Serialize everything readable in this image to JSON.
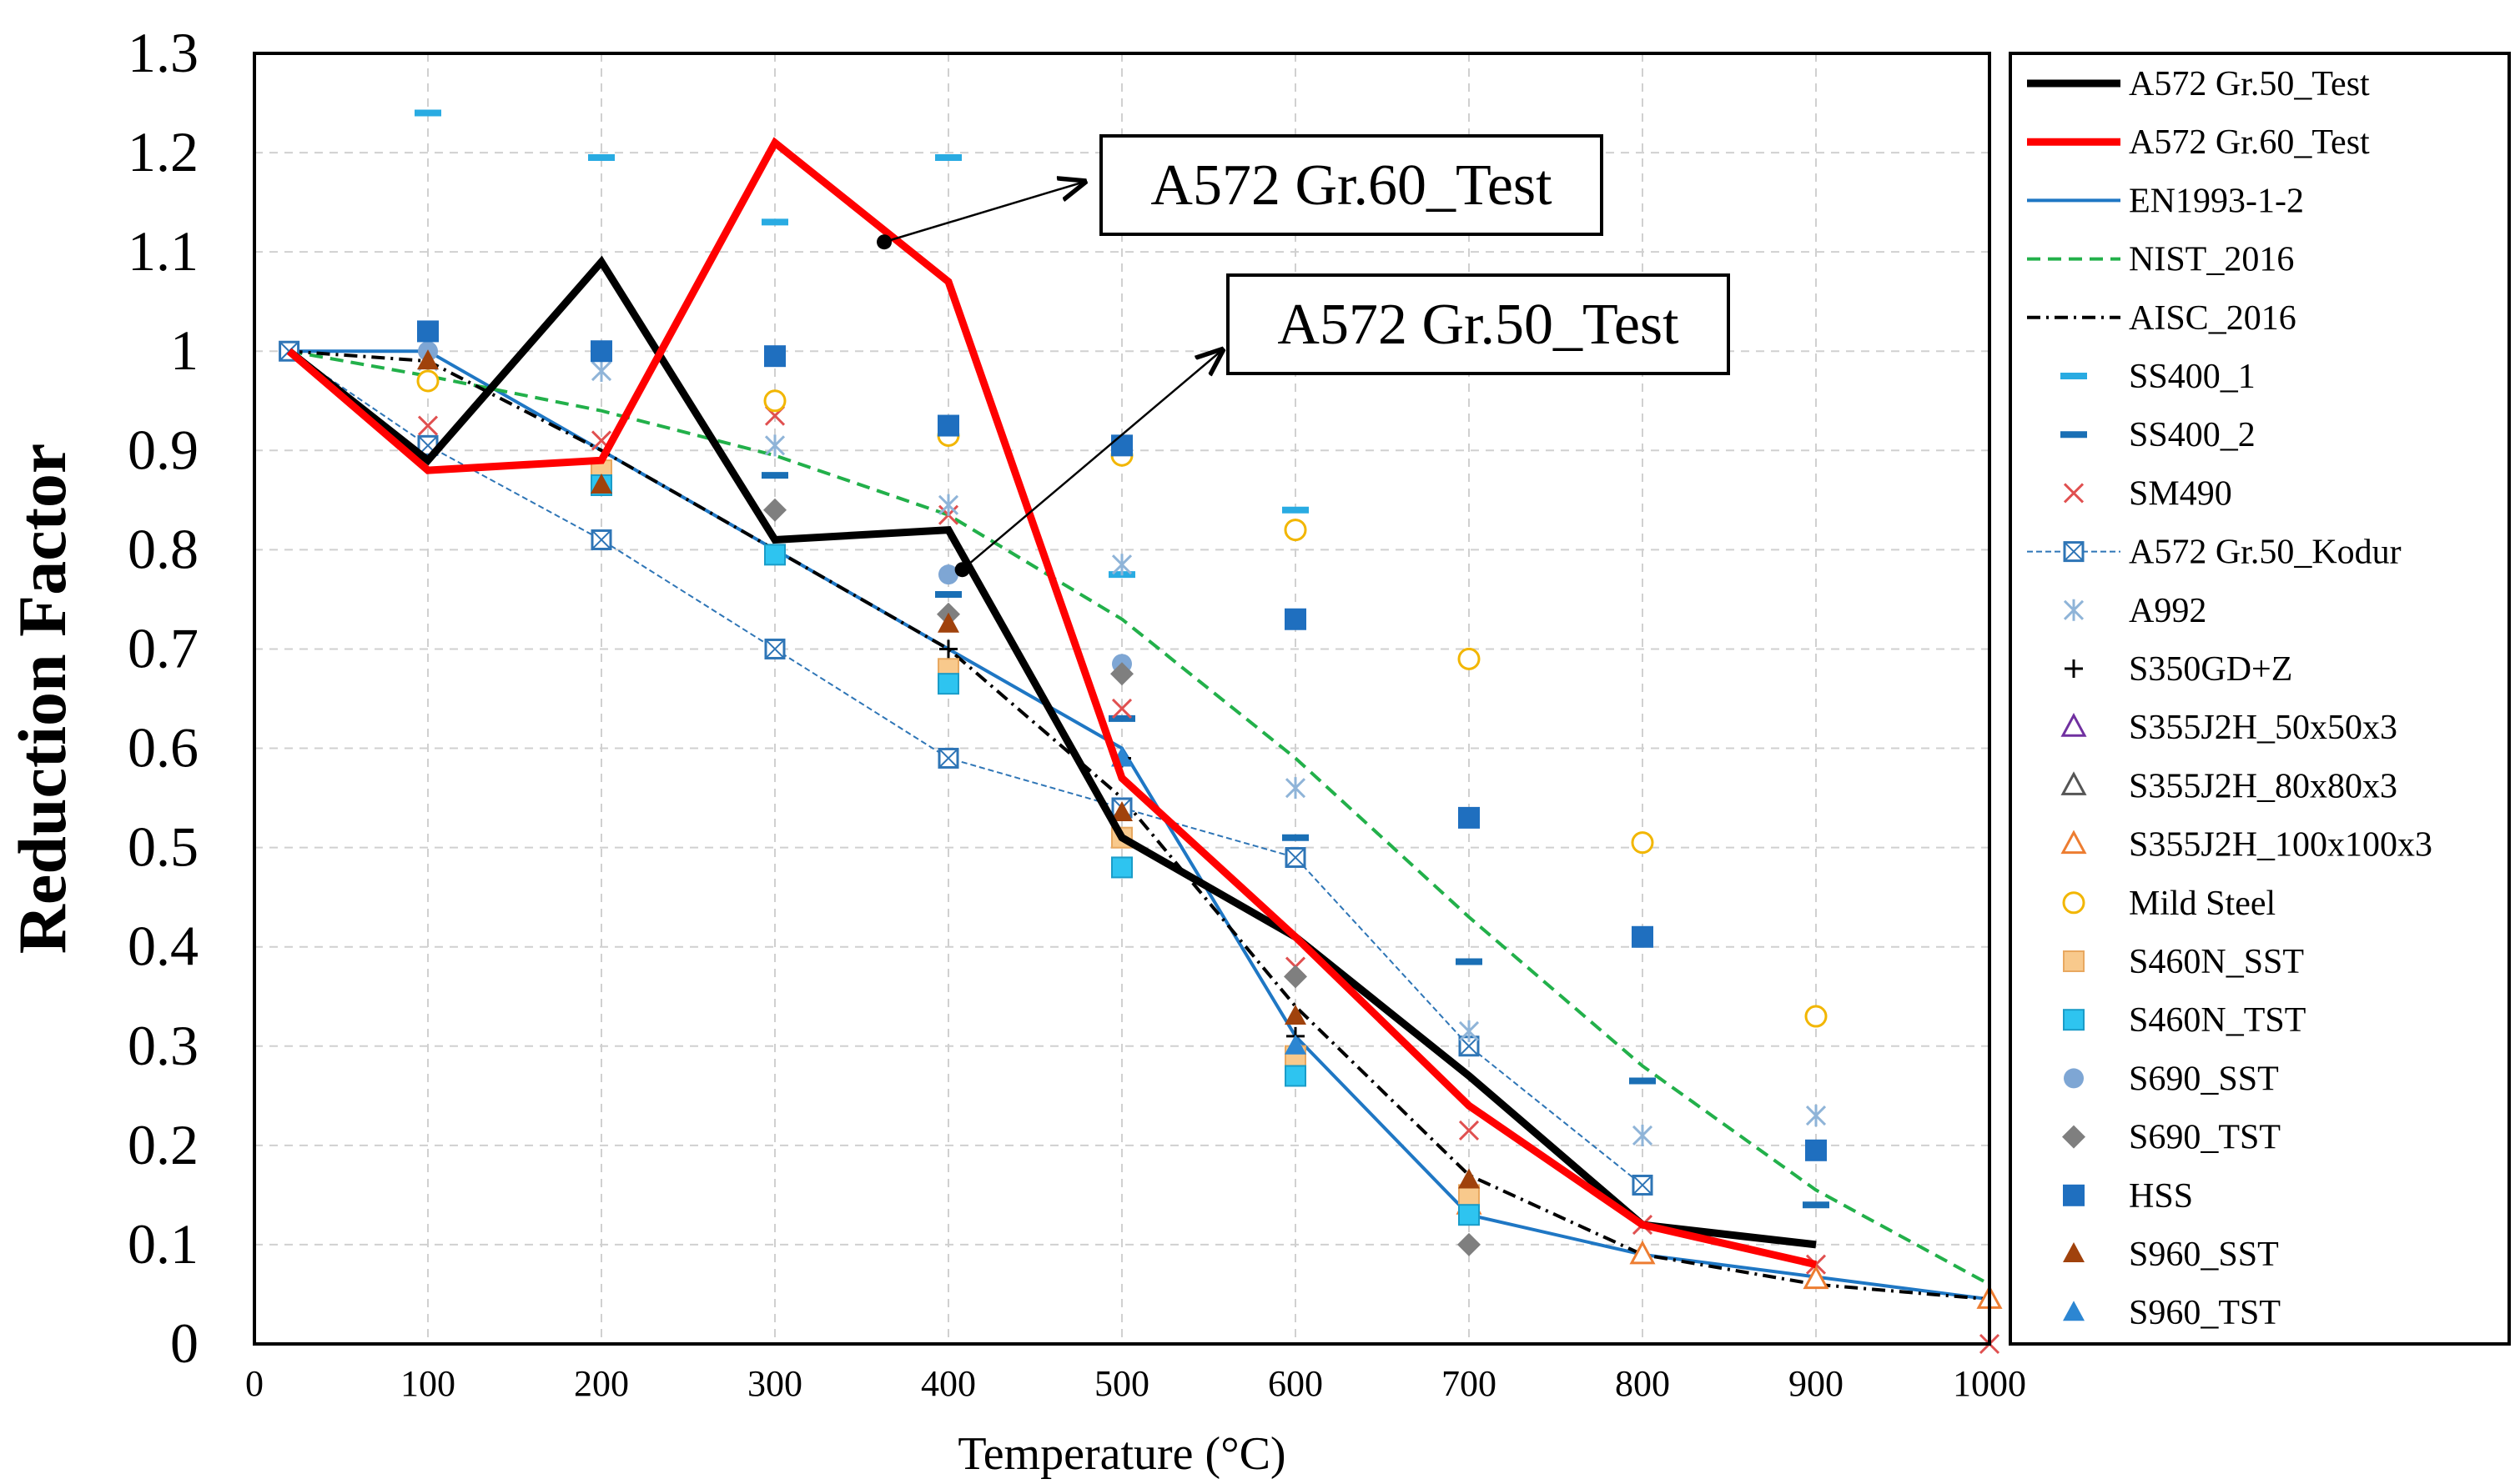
{
  "chart_data": {
    "type": "line",
    "xlabel": "Temperature (°C)",
    "ylabel": "Reduction Factor",
    "xlim": [
      0,
      1000
    ],
    "ylim": [
      0,
      1.3
    ],
    "x_ticks": [
      "0",
      "100",
      "200",
      "300",
      "400",
      "500",
      "600",
      "700",
      "800",
      "900",
      "1000"
    ],
    "y_ticks": [
      "0",
      "0.1",
      "0.2",
      "0.3",
      "0.4",
      "0.5",
      "0.6",
      "0.7",
      "0.8",
      "0.9",
      "1",
      "1.1",
      "1.2",
      "1.3"
    ],
    "grid": true,
    "legend_position": "right",
    "annotations": [
      {
        "text": "A572 Gr.60_Test",
        "point": [
          363,
          1.11
        ]
      },
      {
        "text": "A572 Gr.50_Test",
        "point": [
          408,
          0.78
        ]
      }
    ],
    "series": [
      {
        "name": "A572 Gr.50_Test",
        "style": "line",
        "color": "#000000",
        "dash": "",
        "width": 9,
        "x": [
          20,
          100,
          200,
          300,
          400,
          500,
          600,
          700,
          800,
          900
        ],
        "y": [
          1.0,
          0.89,
          1.09,
          0.81,
          0.82,
          0.51,
          0.41,
          0.27,
          0.12,
          0.1
        ]
      },
      {
        "name": "A572 Gr.60_Test",
        "style": "line",
        "color": "#ff0000",
        "dash": "",
        "width": 9,
        "x": [
          20,
          100,
          200,
          300,
          400,
          500,
          600,
          700,
          800,
          900
        ],
        "y": [
          1.0,
          0.88,
          0.89,
          1.21,
          1.07,
          0.57,
          0.41,
          0.24,
          0.12,
          0.08
        ]
      },
      {
        "name": "EN1993-1-2",
        "style": "line",
        "color": "#1f77c4",
        "dash": "",
        "width": 4,
        "x": [
          20,
          100,
          200,
          300,
          400,
          500,
          600,
          700,
          800,
          900,
          1000
        ],
        "y": [
          1.0,
          1.0,
          0.9,
          0.8,
          0.7,
          0.6,
          0.31,
          0.13,
          0.09,
          0.0675,
          0.045
        ]
      },
      {
        "name": "NIST_2016",
        "style": "line",
        "color": "#22b04a",
        "dash": "16 9",
        "width": 4,
        "x": [
          20,
          100,
          200,
          300,
          400,
          500,
          600,
          700,
          800,
          900,
          1000
        ],
        "y": [
          1.0,
          0.975,
          0.94,
          0.895,
          0.835,
          0.73,
          0.59,
          0.43,
          0.28,
          0.155,
          0.06
        ]
      },
      {
        "name": "AISC_2016",
        "style": "line",
        "color": "#000000",
        "dash": "16 7 3 7",
        "width": 4,
        "x": [
          20,
          100,
          200,
          300,
          400,
          500,
          600,
          700,
          800,
          900,
          1000
        ],
        "y": [
          1.0,
          0.99,
          0.9,
          0.8,
          0.7,
          0.55,
          0.34,
          0.17,
          0.09,
          0.06,
          0.045
        ]
      },
      {
        "name": "SS400_1",
        "style": "marker",
        "marker": "dash",
        "color": "#29abe2",
        "x": [
          100,
          200,
          300,
          400,
          500,
          600
        ],
        "y": [
          1.24,
          1.195,
          1.13,
          1.195,
          0.775,
          0.84
        ]
      },
      {
        "name": "SS400_2",
        "style": "marker",
        "marker": "dash",
        "color": "#1a6fb5",
        "x": [
          300,
          400,
          500,
          600,
          700,
          800,
          900
        ],
        "y": [
          0.875,
          0.755,
          0.63,
          0.51,
          0.385,
          0.265,
          0.14
        ]
      },
      {
        "name": "SM490",
        "style": "marker",
        "marker": "x",
        "color": "#e05050",
        "x": [
          100,
          200,
          300,
          400,
          500,
          600,
          700,
          800,
          900,
          1000
        ],
        "y": [
          0.925,
          0.91,
          0.935,
          0.835,
          0.64,
          0.38,
          0.215,
          0.12,
          0.08,
          0.0
        ]
      },
      {
        "name": "A572 Gr.50_Kodur",
        "style": "line",
        "marker": "boxx",
        "color": "#2e75b6",
        "dash": "7 4",
        "width": 2,
        "x": [
          20,
          100,
          200,
          300,
          400,
          500,
          600,
          700,
          800
        ],
        "y": [
          1.0,
          0.905,
          0.81,
          0.7,
          0.59,
          0.54,
          0.49,
          0.3,
          0.16
        ]
      },
      {
        "name": "A992",
        "style": "marker",
        "marker": "star",
        "color": "#8fb4d8",
        "x": [
          100,
          200,
          300,
          400,
          500,
          600,
          700,
          800,
          900
        ],
        "y": [
          0.99,
          0.98,
          0.905,
          0.845,
          0.785,
          0.56,
          0.315,
          0.21,
          0.23
        ]
      },
      {
        "name": "S350GD+Z",
        "style": "marker",
        "marker": "plus",
        "color": "#000000",
        "x": [
          200,
          400,
          500,
          600
        ],
        "y": [
          0.88,
          0.7,
          0.59,
          0.31
        ]
      },
      {
        "name": "S355J2H_50x50x3",
        "style": "marker",
        "marker": "tri-open",
        "color": "#7030a0",
        "x": [],
        "y": []
      },
      {
        "name": "S355J2H_80x80x3",
        "style": "marker",
        "marker": "tri-open",
        "color": "#555555",
        "x": [],
        "y": []
      },
      {
        "name": "S355J2H_100x100x3",
        "style": "marker",
        "marker": "tri-open",
        "color": "#ed7d31",
        "x": [
          700,
          800,
          900,
          1000
        ],
        "y": [
          0.14,
          0.09,
          0.065,
          0.045
        ]
      },
      {
        "name": "Mild Steel",
        "style": "marker",
        "marker": "circle-open",
        "color": "#f2b600",
        "x": [
          100,
          300,
          400,
          500,
          600,
          700,
          800,
          900
        ],
        "y": [
          0.97,
          0.95,
          0.915,
          0.895,
          0.82,
          0.69,
          0.505,
          0.33
        ]
      },
      {
        "name": "S460N_SST",
        "style": "marker",
        "marker": "square",
        "color": "#f8c98c",
        "x": [
          200,
          400,
          500,
          600,
          700
        ],
        "y": [
          0.88,
          0.68,
          0.51,
          0.29,
          0.15
        ]
      },
      {
        "name": "S460N_TST",
        "style": "marker",
        "marker": "square",
        "color": "#2ec4f0",
        "x": [
          200,
          300,
          400,
          500,
          600,
          700
        ],
        "y": [
          0.865,
          0.795,
          0.665,
          0.48,
          0.27,
          0.13
        ]
      },
      {
        "name": "S690_SST",
        "style": "marker",
        "marker": "circle",
        "color": "#7ea6d4",
        "x": [
          100,
          400,
          500
        ],
        "y": [
          1.0,
          0.775,
          0.685
        ]
      },
      {
        "name": "S690_TST",
        "style": "marker",
        "marker": "diamond",
        "color": "#7f7f7f",
        "x": [
          300,
          400,
          500,
          600,
          700
        ],
        "y": [
          0.84,
          0.735,
          0.675,
          0.37,
          0.1
        ]
      },
      {
        "name": "HSS",
        "style": "marker",
        "marker": "square",
        "color": "#1f6fbf",
        "x": [
          100,
          200,
          300,
          400,
          500,
          600,
          700,
          800,
          900
        ],
        "y": [
          1.02,
          1.0,
          0.995,
          0.925,
          0.905,
          0.73,
          0.53,
          0.41,
          0.195
        ]
      },
      {
        "name": "S960_SST",
        "style": "marker",
        "marker": "tri",
        "color": "#a0420c",
        "x": [
          100,
          200,
          400,
          500,
          600,
          700
        ],
        "y": [
          0.99,
          0.865,
          0.725,
          0.535,
          0.33,
          0.165
        ]
      },
      {
        "name": "S960_TST",
        "style": "marker",
        "marker": "tri",
        "color": "#2c86d2",
        "x": [
          500,
          600
        ],
        "y": [
          0.59,
          0.3
        ]
      }
    ]
  }
}
